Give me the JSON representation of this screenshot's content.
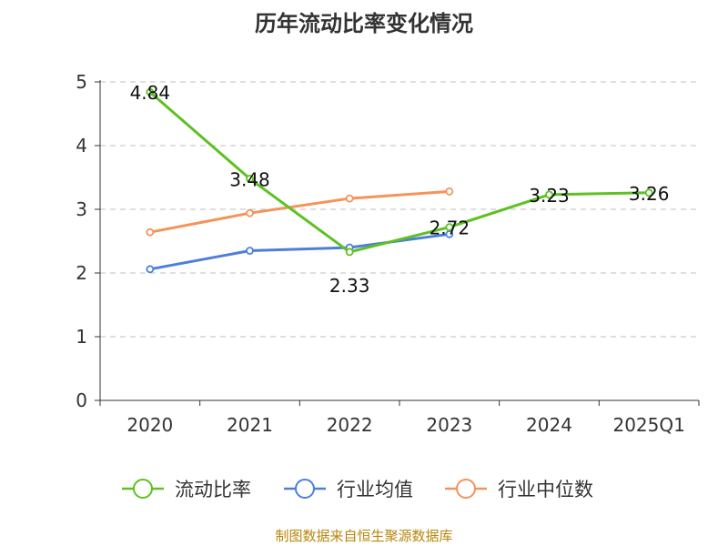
{
  "footer": "制图数据来自恒生聚源数据库",
  "chart_data": {
    "type": "line",
    "title": "历年流动比率变化情况",
    "xlabel": "",
    "ylabel": "",
    "categories": [
      "2020",
      "2021",
      "2022",
      "2023",
      "2024",
      "2025Q1"
    ],
    "ylim": [
      0,
      5
    ],
    "yticks": [
      0,
      1,
      2,
      3,
      4,
      5
    ],
    "grid": true,
    "legend_position": "bottom",
    "series": [
      {
        "name": "流动比率",
        "color": "#5ec122",
        "values": [
          4.84,
          3.48,
          2.33,
          2.72,
          3.23,
          3.26
        ],
        "labels": [
          "4.84",
          "3.48",
          "2.33",
          "2.72",
          "3.23",
          "3.26"
        ]
      },
      {
        "name": "行业均值",
        "color": "#4d7fd9",
        "values": [
          2.06,
          2.35,
          2.4,
          2.61,
          null,
          null
        ]
      },
      {
        "name": "行业中位数",
        "color": "#f5935a",
        "values": [
          2.64,
          2.94,
          3.17,
          3.28,
          null,
          null
        ]
      }
    ]
  }
}
